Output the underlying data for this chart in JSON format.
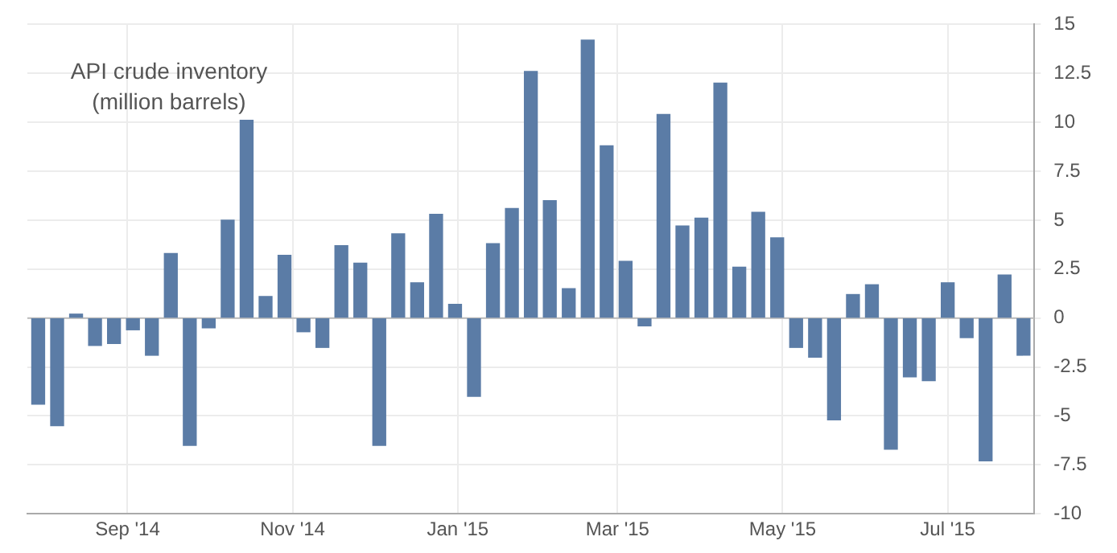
{
  "chart_data": {
    "type": "bar",
    "title": "API crude inventory",
    "subtitle": "(million barrels)",
    "x": [
      "2014-07-30",
      "2014-08-06",
      "2014-08-13",
      "2014-08-20",
      "2014-08-27",
      "2014-09-03",
      "2014-09-10",
      "2014-09-17",
      "2014-09-24",
      "2014-10-01",
      "2014-10-08",
      "2014-10-15",
      "2014-10-22",
      "2014-10-29",
      "2014-11-05",
      "2014-11-12",
      "2014-11-19",
      "2014-11-26",
      "2014-12-03",
      "2014-12-10",
      "2014-12-17",
      "2014-12-24",
      "2014-12-31",
      "2015-01-07",
      "2015-01-14",
      "2015-01-21",
      "2015-01-28",
      "2015-02-04",
      "2015-02-11",
      "2015-02-18",
      "2015-02-25",
      "2015-03-04",
      "2015-03-11",
      "2015-03-18",
      "2015-03-25",
      "2015-04-01",
      "2015-04-08",
      "2015-04-15",
      "2015-04-22",
      "2015-04-29",
      "2015-05-06",
      "2015-05-13",
      "2015-05-20",
      "2015-05-27",
      "2015-06-03",
      "2015-06-10",
      "2015-06-17",
      "2015-06-24",
      "2015-07-01",
      "2015-07-08",
      "2015-07-15",
      "2015-07-22",
      "2015-07-29"
    ],
    "values": [
      -4.4,
      -5.5,
      0.2,
      -1.4,
      -1.3,
      -0.6,
      -1.9,
      3.3,
      -6.5,
      -0.5,
      5.0,
      10.1,
      1.1,
      3.2,
      -0.7,
      -1.5,
      3.7,
      2.8,
      -6.5,
      4.3,
      1.8,
      5.3,
      0.7,
      -4.0,
      3.8,
      5.6,
      12.6,
      6.0,
      1.5,
      14.2,
      8.8,
      2.9,
      -0.4,
      10.4,
      4.7,
      5.1,
      12.0,
      2.6,
      5.4,
      4.1,
      -1.5,
      -2.0,
      -5.2,
      1.2,
      1.7,
      -6.7,
      -3.0,
      -3.2,
      1.8,
      -1.0,
      -7.3,
      2.2,
      -1.9
    ],
    "color": "#5b7ca6",
    "xlim": [
      "2014-07-26",
      "2015-08-02"
    ],
    "xticks": [
      {
        "value": "2014-09-01",
        "label": "Sep '14"
      },
      {
        "value": "2014-11-01",
        "label": "Nov '14"
      },
      {
        "value": "2015-01-01",
        "label": "Jan '15"
      },
      {
        "value": "2015-03-01",
        "label": "Mar '15"
      },
      {
        "value": "2015-05-01",
        "label": "May '15"
      },
      {
        "value": "2015-07-01",
        "label": "Jul '15"
      }
    ],
    "ylim": [
      -10,
      15
    ],
    "yticks": [
      -10,
      -7.5,
      -5,
      -2.5,
      0,
      2.5,
      5,
      7.5,
      10,
      12.5,
      15
    ],
    "grid": true,
    "legend": false
  }
}
